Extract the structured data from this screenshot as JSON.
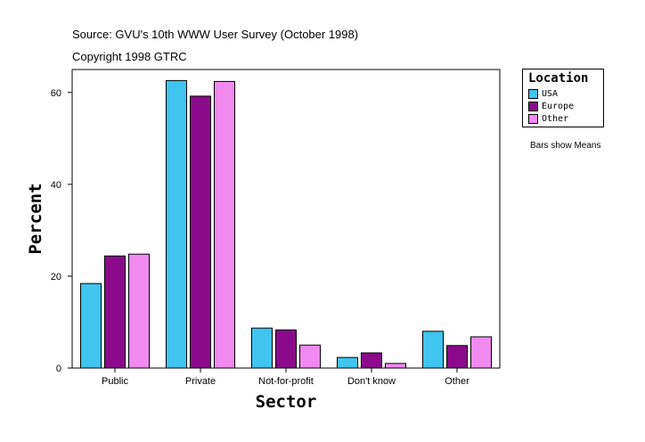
{
  "header": {
    "source": "Source: GVU's 10th WWW User Survey (October 1998)",
    "copyright": "Copyright 1998 GTRC"
  },
  "note": "Bars show Means",
  "chart_data": {
    "type": "bar",
    "xlabel": "Sector",
    "ylabel": "Percent",
    "ylim": [
      0,
      65
    ],
    "yticks": [
      0,
      20,
      40,
      60
    ],
    "categories": [
      "Public",
      "Private",
      "Not-for-profit",
      "Don't know",
      "Other"
    ],
    "legend": {
      "title": "Location",
      "placement": "right"
    },
    "series": [
      {
        "name": "USA",
        "color": "#40c4f0",
        "values": [
          18.4,
          62.6,
          8.7,
          2.3,
          8.0
        ]
      },
      {
        "name": "Europe",
        "color": "#8b0a8b",
        "values": [
          24.4,
          59.2,
          8.3,
          3.3,
          4.9
        ]
      },
      {
        "name": "Other",
        "color": "#f08af0",
        "values": [
          24.8,
          62.4,
          5.0,
          1.0,
          6.8
        ]
      }
    ]
  }
}
